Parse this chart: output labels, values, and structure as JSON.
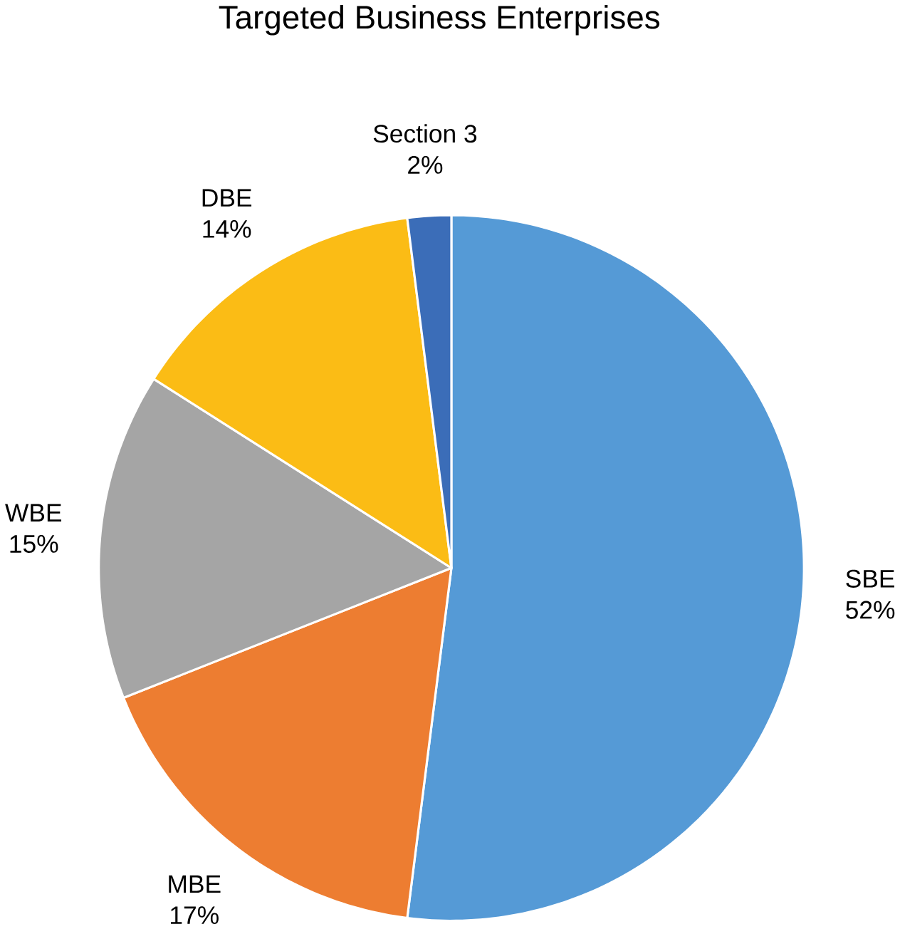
{
  "chart_data": {
    "type": "pie",
    "title": "Targeted Business Enterprises",
    "categories": [
      "SBE",
      "MBE",
      "WBE",
      "DBE",
      "Section 3"
    ],
    "values": [
      52,
      17,
      15,
      14,
      2
    ],
    "value_labels": [
      "52%",
      "17%",
      "15%",
      "14%",
      "2%"
    ],
    "colors": [
      "#559ad6",
      "#ed7d31",
      "#a5a5a5",
      "#fbbc15",
      "#3b6db8"
    ]
  }
}
